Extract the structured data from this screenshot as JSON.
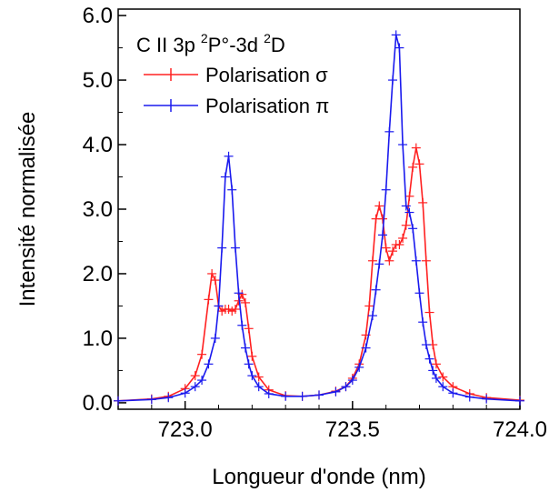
{
  "chart_data": {
    "type": "line",
    "title": "",
    "xlabel": "Longueur d'onde (nm)",
    "ylabel": "Intensité normalisée",
    "xlim": [
      722.8,
      724.0
    ],
    "ylim": [
      -0.1,
      6.1
    ],
    "x_ticks": [
      723.0,
      723.5,
      724.0
    ],
    "x_tick_labels": [
      "723.0",
      "723.5",
      "724.0"
    ],
    "y_ticks": [
      0.0,
      1.0,
      2.0,
      3.0,
      4.0,
      5.0,
      6.0
    ],
    "y_tick_labels": [
      "0.0",
      "1.0",
      "2.0",
      "3.0",
      "4.0",
      "5.0",
      "6.0"
    ],
    "grid": false,
    "legend": {
      "position": "top-left",
      "title_main": "C II 3p ",
      "title_sup1": "2",
      "title_mid": "P°-3d ",
      "title_sup2": "2",
      "title_end": "D"
    },
    "series": [
      {
        "name": "Polarisation σ",
        "color": "#ff2020",
        "x": [
          722.8,
          722.9,
          722.95,
          723.0,
          723.03,
          723.05,
          723.07,
          723.08,
          723.09,
          723.1,
          723.11,
          723.12,
          723.13,
          723.14,
          723.15,
          723.16,
          723.17,
          723.18,
          723.19,
          723.2,
          723.22,
          723.25,
          723.3,
          723.35,
          723.4,
          723.45,
          723.48,
          723.5,
          723.52,
          723.54,
          723.55,
          723.56,
          723.57,
          723.58,
          723.59,
          723.6,
          723.61,
          723.62,
          723.63,
          723.64,
          723.65,
          723.66,
          723.67,
          723.68,
          723.69,
          723.7,
          723.71,
          723.72,
          723.73,
          723.74,
          723.75,
          723.77,
          723.8,
          723.85,
          723.9,
          724.0
        ],
        "values": [
          0.03,
          0.06,
          0.1,
          0.22,
          0.42,
          0.75,
          1.6,
          2.0,
          1.9,
          1.5,
          1.42,
          1.45,
          1.45,
          1.42,
          1.45,
          1.58,
          1.68,
          1.55,
          1.15,
          0.72,
          0.4,
          0.2,
          0.11,
          0.1,
          0.12,
          0.18,
          0.25,
          0.38,
          0.6,
          1.05,
          1.5,
          2.2,
          2.85,
          3.05,
          2.85,
          2.4,
          2.2,
          2.35,
          2.45,
          2.45,
          2.55,
          2.75,
          3.2,
          3.65,
          3.95,
          3.7,
          3.1,
          2.2,
          1.4,
          0.9,
          0.6,
          0.4,
          0.25,
          0.14,
          0.08,
          0.04
        ]
      },
      {
        "name": "Polarisation π",
        "color": "#1a1aee",
        "x": [
          722.8,
          722.9,
          722.95,
          723.0,
          723.03,
          723.05,
          723.07,
          723.09,
          723.1,
          723.11,
          723.12,
          723.13,
          723.14,
          723.15,
          723.16,
          723.17,
          723.18,
          723.19,
          723.2,
          723.22,
          723.25,
          723.3,
          723.35,
          723.4,
          723.45,
          723.48,
          723.5,
          723.52,
          723.54,
          723.56,
          723.57,
          723.58,
          723.59,
          723.6,
          723.61,
          723.62,
          723.63,
          723.64,
          723.65,
          723.66,
          723.67,
          723.68,
          723.69,
          723.7,
          723.71,
          723.72,
          723.73,
          723.74,
          723.75,
          723.77,
          723.8,
          723.85,
          723.9,
          724.0
        ],
        "values": [
          0.03,
          0.05,
          0.08,
          0.15,
          0.25,
          0.35,
          0.6,
          1.0,
          1.5,
          2.4,
          3.5,
          3.82,
          3.3,
          2.4,
          1.7,
          1.2,
          0.85,
          0.6,
          0.42,
          0.25,
          0.14,
          0.1,
          0.1,
          0.12,
          0.17,
          0.25,
          0.35,
          0.55,
          0.85,
          1.35,
          1.75,
          2.15,
          2.6,
          3.3,
          4.2,
          5.0,
          5.7,
          5.5,
          4.0,
          3.05,
          2.95,
          2.7,
          2.2,
          1.7,
          1.25,
          0.9,
          0.68,
          0.5,
          0.38,
          0.25,
          0.15,
          0.09,
          0.06,
          0.03
        ]
      }
    ]
  }
}
